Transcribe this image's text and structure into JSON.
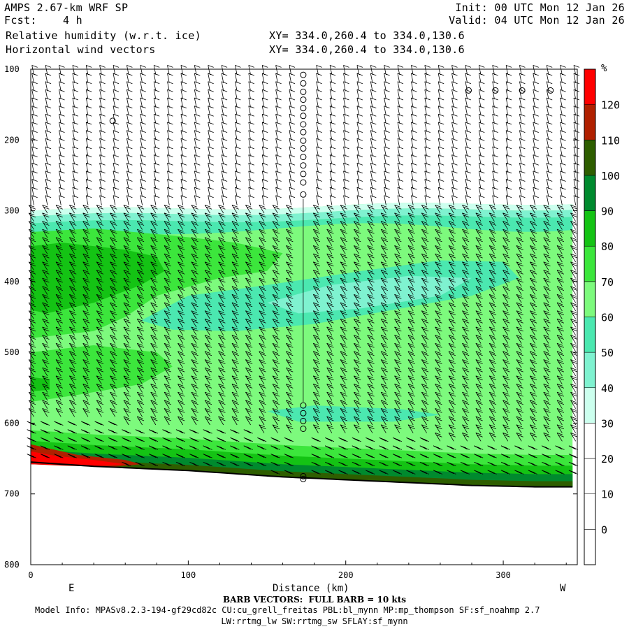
{
  "header": {
    "title": "AMPS 2.67-km WRF SP",
    "fcst_label": "Fcst:",
    "fcst_value": "4 h",
    "init": "Init: 00 UTC Mon 12 Jan 26",
    "valid": "Valid: 04 UTC Mon 12 Jan 26",
    "field1": "Relative humidity (w.r.t. ice)",
    "field2": "Horizontal wind vectors",
    "xy1": "XY= 334.0,260.4 to 334.0,130.6",
    "xy2": "XY= 334.0,260.4 to 334.0,130.6"
  },
  "footer": {
    "barb_note": "BARB VECTORS:  FULL BARB = 10 kts",
    "model_info": "Model Info: MPASv8.2.3-194-gf29cd82c CU:cu_grell_freitas PBL:bl_mynn MP:mp_thompson SF:sf_noahmp 2.7",
    "model_info2": "LW:rrtmg_lw SW:rrtmg_sw SFLAY:sf_mynn"
  },
  "chart_data": {
    "type": "heatmap",
    "xlabel": "Distance (km)",
    "ylabel": "",
    "x_ticks": [
      0,
      100,
      200,
      300
    ],
    "xlim": [
      0,
      347
    ],
    "y_ticks": [
      100,
      200,
      300,
      400,
      500,
      600,
      700,
      800
    ],
    "ylim": [
      100,
      800
    ],
    "y_inverted": true,
    "left_end_label": "E",
    "right_end_label": "W",
    "colorbar": {
      "unit": "%",
      "levels": [
        0,
        10,
        20,
        30,
        40,
        50,
        60,
        70,
        80,
        90,
        100,
        110,
        120
      ],
      "colors": [
        "#ffffff",
        "#ffffff",
        "#ffffff",
        "#ffffff",
        "#ccffee",
        "#7ff2d0",
        "#4be8b0",
        "#7dfa7d",
        "#3ce63c",
        "#14c314",
        "#008a2e",
        "#2e5e00",
        "#b02000",
        "#ff0000"
      ]
    },
    "terrain_pressure": [
      [
        0,
        655
      ],
      [
        20,
        658
      ],
      [
        40,
        661
      ],
      [
        60,
        663
      ],
      [
        80,
        665
      ],
      [
        100,
        667
      ],
      [
        120,
        670
      ],
      [
        140,
        673
      ],
      [
        160,
        676
      ],
      [
        180,
        678
      ],
      [
        200,
        680
      ],
      [
        220,
        682
      ],
      [
        240,
        684
      ],
      [
        260,
        686
      ],
      [
        280,
        688
      ],
      [
        300,
        689
      ],
      [
        320,
        690
      ],
      [
        347,
        690
      ]
    ],
    "calm_points": [
      [
        52,
        173
      ],
      [
        173,
        108
      ],
      [
        173,
        120
      ],
      [
        173,
        132
      ],
      [
        173,
        143
      ],
      [
        173,
        155
      ],
      [
        173,
        166
      ],
      [
        173,
        178
      ],
      [
        173,
        189
      ],
      [
        173,
        201
      ],
      [
        173,
        212
      ],
      [
        173,
        224
      ],
      [
        173,
        236
      ],
      [
        173,
        248
      ],
      [
        173,
        260
      ],
      [
        173,
        277
      ],
      [
        173,
        575
      ],
      [
        173,
        586
      ],
      [
        173,
        597
      ],
      [
        173,
        608
      ],
      [
        173,
        675
      ],
      [
        173,
        679
      ],
      [
        278,
        130
      ],
      [
        295,
        130
      ],
      [
        312,
        130
      ],
      [
        330,
        130
      ]
    ]
  }
}
